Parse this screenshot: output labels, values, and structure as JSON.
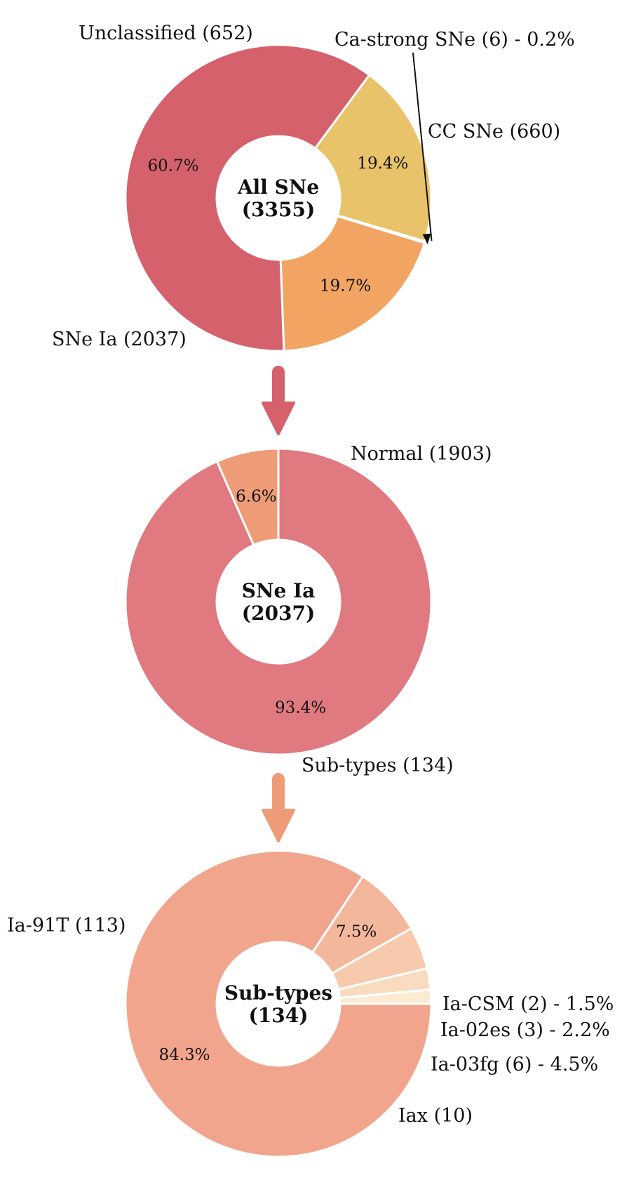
{
  "chart_data": [
    {
      "type": "pie",
      "center_label": [
        "All SNe",
        "(3355)"
      ],
      "categories": [
        "Unclassified (652)",
        "Ca-strong SNe (6) - 0.2%",
        "CC SNe (660)",
        "SNe Ia (2037)"
      ],
      "values": [
        652,
        6,
        660,
        2037
      ],
      "percent_labels": [
        "19.4%",
        "",
        "19.7%",
        "60.7%"
      ],
      "colors": [
        "#e8c36a",
        "#d9d9d9",
        "#f2a462",
        "#d4616c"
      ]
    },
    {
      "type": "pie",
      "center_label": [
        "SNe Ia",
        "(2037)"
      ],
      "categories": [
        "Normal (1903)",
        "Sub-types (134)"
      ],
      "values": [
        1903,
        134
      ],
      "percent_labels": [
        "93.4%",
        "6.6%"
      ],
      "colors": [
        "#e07980",
        "#ee9b78"
      ]
    },
    {
      "type": "pie",
      "center_label": [
        "Sub-types",
        "(134)"
      ],
      "categories": [
        "Ia-91T (113)",
        "Iax (10)",
        "Ia-03fg (6) - 4.5%",
        "Ia-02es (3) - 2.2%",
        "Ia-CSM (2) - 1.5%"
      ],
      "values": [
        113,
        10,
        6,
        3,
        2
      ],
      "percent_labels": [
        "84.3%",
        "7.5%",
        "",
        "",
        ""
      ],
      "colors": [
        "#f1a58d",
        "#f3b79c",
        "#f7c9ad",
        "#f9dbc0",
        "#fcebd3"
      ]
    }
  ],
  "arrows": [
    {
      "color": "#d4616c"
    },
    {
      "color": "#ee9b78"
    }
  ]
}
